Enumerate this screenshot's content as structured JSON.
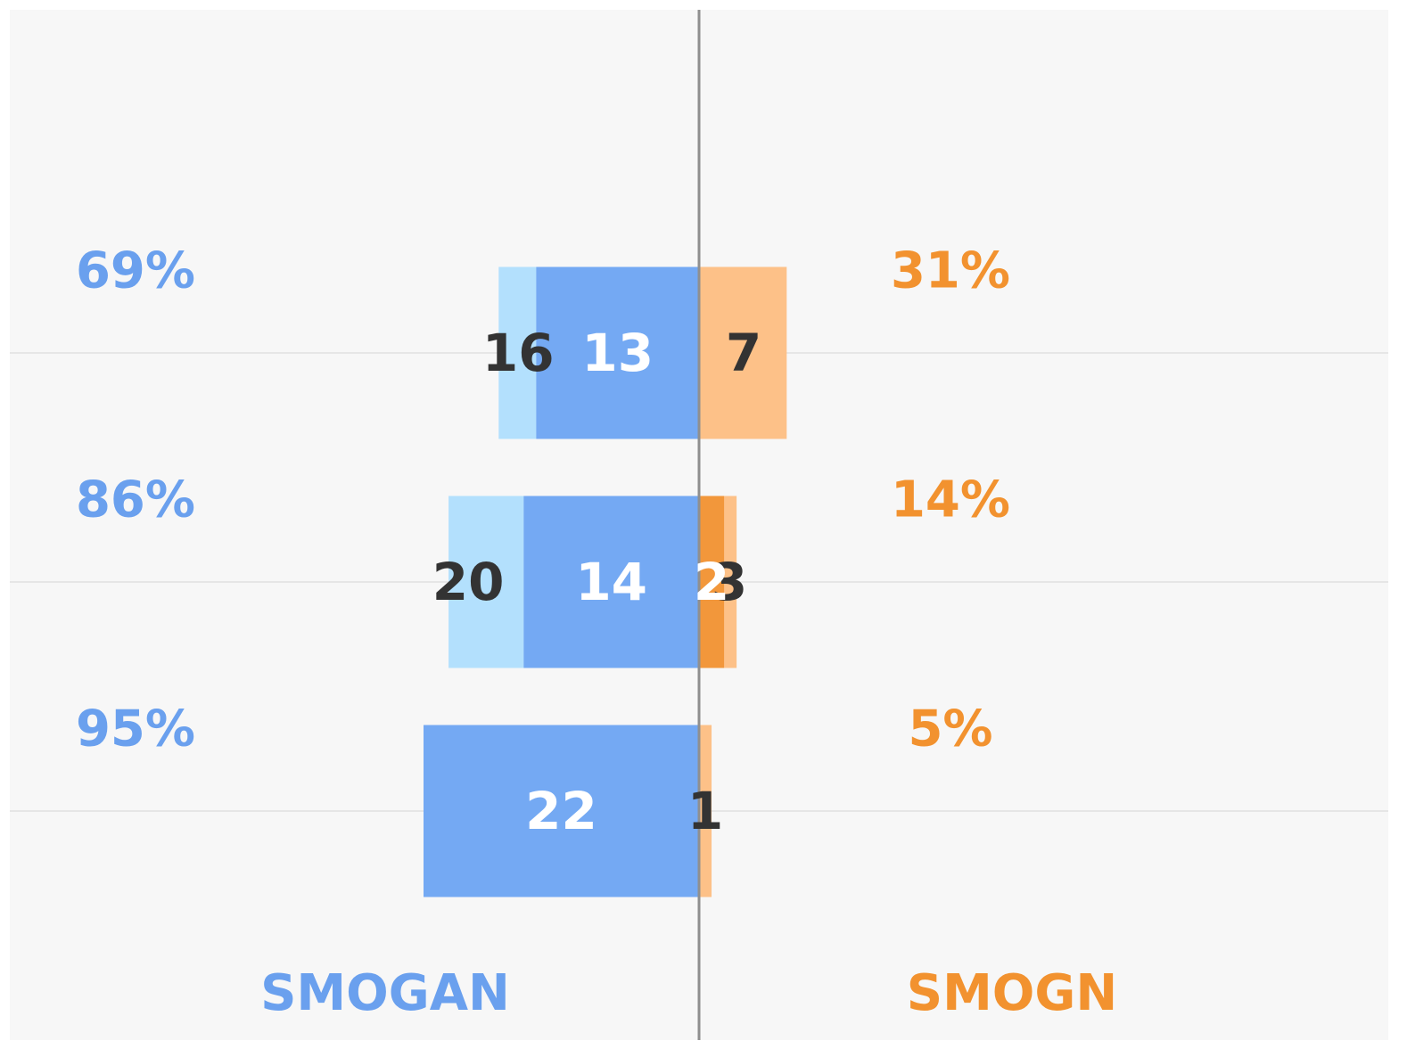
{
  "chart_data": {
    "type": "bar",
    "orientation": "horizontal-diverging",
    "grid": true,
    "left_series": [
      {
        "name": "SMOGAN",
        "role": "total",
        "values": [
          16,
          20,
          22
        ],
        "color": "#b3e0fd"
      },
      {
        "name": "SMOGAN",
        "role": "dark",
        "values": [
          13,
          14,
          22
        ],
        "color": "#74a9f3"
      }
    ],
    "right_series": [
      {
        "name": "SMOGN",
        "role": "total",
        "values": [
          7,
          3,
          1
        ],
        "color": "#fdc188"
      },
      {
        "name": "SMOGN",
        "role": "dark",
        "values": [
          0,
          2,
          0
        ],
        "color": "#f2973b"
      }
    ],
    "rows": [
      {
        "left_total_label": "16",
        "left_dark_label": "13",
        "right_total_label": "7",
        "right_dark_label": "",
        "left_pct": "69%",
        "right_pct": "31%"
      },
      {
        "left_total_label": "20",
        "left_dark_label": "14",
        "right_total_label": "3",
        "right_dark_label": "2",
        "left_pct": "86%",
        "right_pct": "14%"
      },
      {
        "left_total_label": "",
        "left_dark_label": "22",
        "right_total_label": "1",
        "right_dark_label": "",
        "left_pct": "95%",
        "right_pct": "5%"
      }
    ],
    "xlim": [
      -25,
      55
    ],
    "left_label": "SMOGAN",
    "right_label": "SMOGN",
    "colors": {
      "background": "#f7f7f7",
      "left_text": "#6aa0ee",
      "right_text": "#f2922f",
      "center_line": "#8f8f8f",
      "grid": "#e6e6e6",
      "dark_label": "#333333",
      "light_label": "#ffffff"
    }
  }
}
